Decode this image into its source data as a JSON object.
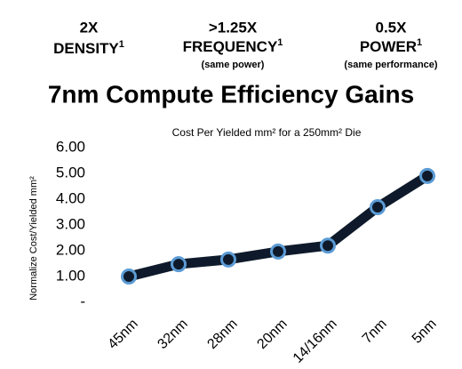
{
  "headers": [
    {
      "big": "2X",
      "label": "DENSITY",
      "sup": "1"
    },
    {
      "big": ">1.25X",
      "label": "FREQUENCY",
      "sup": "1",
      "sub": "(same power)"
    },
    {
      "big": "0.5X",
      "label": "POWER",
      "sup": "1",
      "sub": "(same performance)"
    }
  ],
  "chart_data": {
    "type": "line",
    "title": "7nm Compute Efficiency Gains",
    "subtitle": "Cost Per Yielded mm² for a 250mm² Die",
    "y_label": "Normalize Cost/Yielded mm²",
    "categories": [
      "45nm",
      "32nm",
      "28nm",
      "20nm",
      "14/16nm",
      "7nm",
      "5nm"
    ],
    "values": [
      1.0,
      1.48,
      1.66,
      1.97,
      2.2,
      3.69,
      4.9
    ],
    "color": "#0e1a2b",
    "marker_color": "#5b9bd5",
    "ylim": [
      0,
      6
    ],
    "yticks": [
      {
        "value": 0,
        "label": "-"
      },
      {
        "value": 1,
        "label": "1.00"
      },
      {
        "value": 2,
        "label": "2.00"
      },
      {
        "value": 3,
        "label": "3.00"
      },
      {
        "value": 4,
        "label": "4.00"
      },
      {
        "value": 5,
        "label": "5.00"
      },
      {
        "value": 6,
        "label": "6.00"
      }
    ]
  }
}
